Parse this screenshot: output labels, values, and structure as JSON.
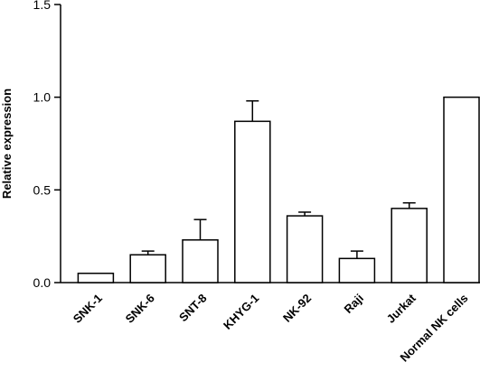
{
  "chart_data": {
    "type": "bar",
    "title": "",
    "xlabel": "",
    "ylabel": "Relative expression",
    "ylim": [
      0,
      1.5
    ],
    "yticks": [
      "0.0",
      "0.5",
      "1.0",
      "1.5"
    ],
    "categories": [
      "SNK-1",
      "SNK-6",
      "SNT-8",
      "KHYG-1",
      "NK-92",
      "Raji",
      "Jurkat",
      "Normal NK cells"
    ],
    "values": [
      0.05,
      0.15,
      0.23,
      0.87,
      0.36,
      0.13,
      0.4,
      1.0
    ],
    "error_upper": [
      0.0,
      0.02,
      0.11,
      0.11,
      0.02,
      0.04,
      0.03,
      0.0
    ],
    "grid": false,
    "legend": "none",
    "colors": {
      "bar_fill": "#ffffff",
      "bar_stroke": "#000000",
      "axis": "#000000"
    }
  }
}
